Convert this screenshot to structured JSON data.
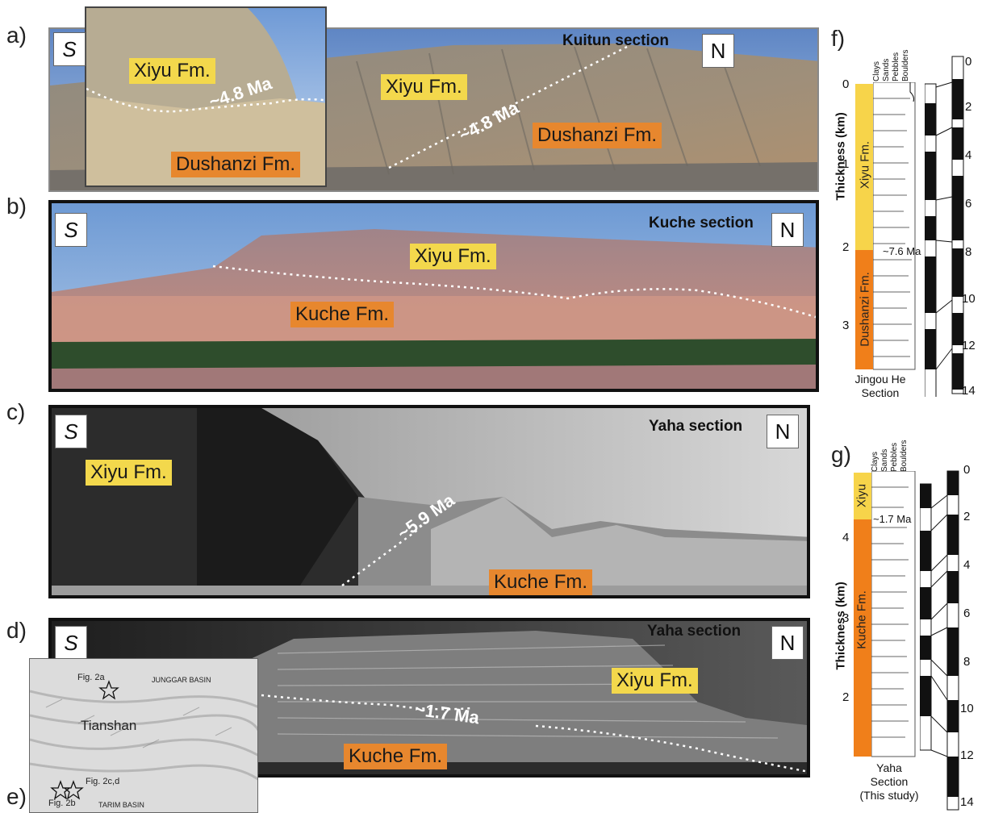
{
  "panel_labels": {
    "a": "a)",
    "b": "b)",
    "c": "c)",
    "d": "d)",
    "e": "e)",
    "f": "f)",
    "g": "g)"
  },
  "directions": {
    "south": "S",
    "north": "N"
  },
  "panel_a": {
    "section": "Kuitun section",
    "inset_upper": "Xiyu Fm.",
    "inset_age": "~4.8 Ma",
    "inset_lower": "Dushanzi Fm.",
    "upper": "Xiyu Fm.",
    "age": "~4.8 Ma",
    "lower": "Dushanzi Fm."
  },
  "panel_b": {
    "section": "Kuche section",
    "upper": "Xiyu Fm.",
    "lower": "Kuche Fm."
  },
  "panel_c": {
    "section": "Yaha section",
    "upper": "Xiyu Fm.",
    "age": "~5.9 Ma",
    "lower": "Kuche Fm."
  },
  "panel_d": {
    "section": "Yaha section",
    "upper": "Xiyu Fm.",
    "age": "~1.7 Ma",
    "lower": "Kuche Fm."
  },
  "map": {
    "fig2a": "Fig. 2a",
    "junggar": "JUNGGAR BASIN",
    "tianshan": "Tianshan",
    "fig2cd": "Fig. 2c,d",
    "fig2b": "Fig. 2b",
    "tarim": "TARIM BASIN"
  },
  "grain_headers": [
    "Clays",
    "Sands",
    "Pebbles",
    "Boulders"
  ],
  "panel_f": {
    "ylabel": "Thickness (km)",
    "ticks": [
      "0",
      "1",
      "2",
      "3"
    ],
    "fm_upper": "Xiyu Fm.",
    "fm_lower": "Dushanzi Fm.",
    "age": "~7.6 Ma",
    "caption_1": "Jingou He",
    "caption_2": "Section",
    "gpts_ticks": [
      "0",
      "2",
      "4",
      "6",
      "8",
      "10",
      "12",
      "14"
    ]
  },
  "panel_g": {
    "ylabel": "Thickness (km)",
    "ticks": [
      "4",
      "3",
      "2"
    ],
    "fm_upper": "Xiyu",
    "fm_lower": "Kuche Fm.",
    "age": "~1.7 Ma",
    "caption_1": "Yaha",
    "caption_2": "Section",
    "caption_3": "(This study)",
    "gpts_ticks": [
      "0",
      "2",
      "4",
      "6",
      "8",
      "10",
      "12",
      "14"
    ]
  },
  "colors": {
    "xiyu": "#f3d84c",
    "dushanzi": "#e7872e",
    "kuche": "#e7872e"
  }
}
